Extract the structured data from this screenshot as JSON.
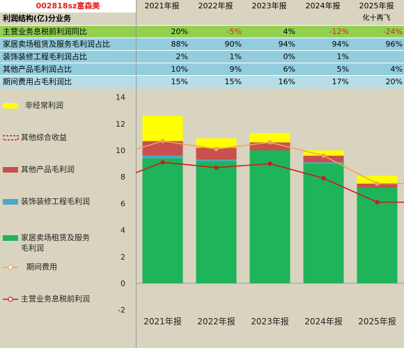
{
  "header": {
    "code": "002818sz富森美",
    "years": [
      "2021年报",
      "2022年报",
      "2023年报",
      "2024年报",
      "2025年报"
    ]
  },
  "table": {
    "title": "利润结构(亿)分业务",
    "note": "化十再飞",
    "rows": [
      {
        "label": "主营业务息税前利润同比",
        "values": [
          "20%",
          "-5%",
          "4%",
          "-12%",
          "-24%"
        ]
      },
      {
        "label": "家居卖场租赁及服务毛利润占比",
        "values": [
          "88%",
          "90%",
          "94%",
          "94%",
          "96%"
        ]
      },
      {
        "label": "装饰装修工程毛利润占比",
        "values": [
          "2%",
          "1%",
          "0%",
          "1%",
          ""
        ]
      },
      {
        "label": "其他产品毛利润占比",
        "values": [
          "10%",
          "9%",
          "6%",
          "5%",
          "4%"
        ]
      },
      {
        "label": "期间费用占毛利润比",
        "values": [
          "15%",
          "15%",
          "16%",
          "17%",
          "20%"
        ]
      }
    ]
  },
  "legend": [
    {
      "key": "s1",
      "label": "非经常利润"
    },
    {
      "key": "s2",
      "label": "其他综合收益"
    },
    {
      "key": "s3",
      "label": "其他产品毛利润"
    },
    {
      "key": "s4",
      "label": "装饰装修工程毛利润"
    },
    {
      "key": "s5",
      "label": "家居卖场租赁及服务\n毛利润"
    },
    {
      "key": "s6",
      "label": "期间费用"
    },
    {
      "key": "s7",
      "label": "主营业务息税前利润"
    }
  ],
  "colors": {
    "green": "#1db45a",
    "blue": "#4aa8c8",
    "red": "#c8504e",
    "yellow": "#ffff00",
    "orange": "#f4a15a",
    "darkred": "#d01818",
    "row_green": "#92d050",
    "row_blue": "#93cddd",
    "row_light": "#b7dde8",
    "code_red": "#e02020"
  },
  "chart_data": {
    "type": "bar",
    "categories": [
      "2021年报",
      "2022年报",
      "2023年报",
      "2024年报",
      "2025年报"
    ],
    "ylim": [
      -2,
      14
    ],
    "yticks": [
      -2,
      0,
      2,
      4,
      6,
      8,
      10,
      12,
      14
    ],
    "series": [
      {
        "name": "家居卖场租赁及服务毛利润",
        "kind": "stack",
        "values": [
          9.4,
          9.2,
          10.0,
          9.0,
          7.2
        ]
      },
      {
        "name": "装饰装修工程毛利润",
        "kind": "stack",
        "values": [
          0.2,
          0.1,
          0.0,
          0.1,
          0.0
        ]
      },
      {
        "name": "其他产品毛利润",
        "kind": "stack",
        "values": [
          1.1,
          0.9,
          0.6,
          0.5,
          0.3
        ]
      },
      {
        "name": "非经常利润",
        "kind": "stack",
        "values": [
          1.9,
          0.7,
          0.7,
          0.4,
          0.6
        ]
      },
      {
        "name": "期间费用",
        "kind": "line",
        "values": [
          10.7,
          10.1,
          10.6,
          9.6,
          7.5
        ]
      },
      {
        "name": "主营业务息税前利润",
        "kind": "line",
        "values": [
          9.1,
          8.7,
          9.0,
          7.9,
          6.1
        ]
      }
    ]
  }
}
